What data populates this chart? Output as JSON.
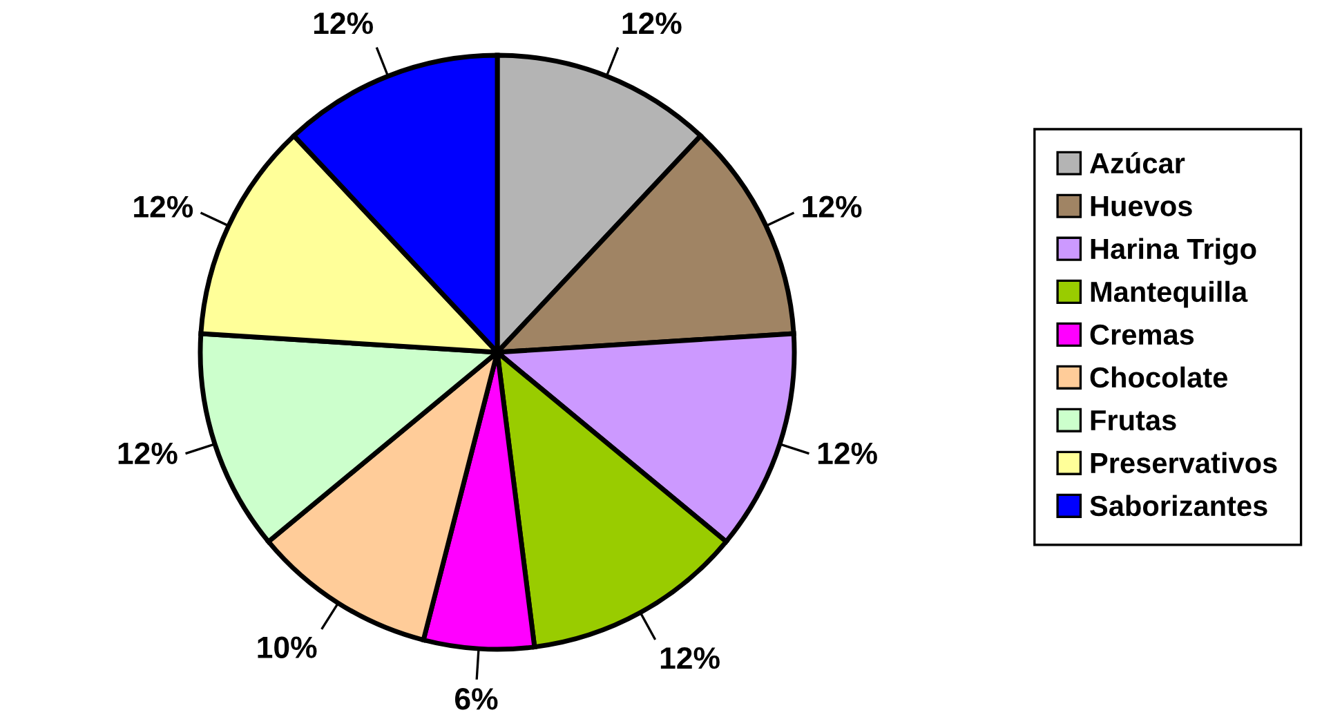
{
  "chart_data": {
    "type": "pie",
    "categories": [
      "Azúcar",
      "Huevos",
      "Harina Trigo",
      "Mantequilla",
      "Cremas",
      "Chocolate",
      "Frutas",
      "Preservativos",
      "Saborizantes"
    ],
    "values": [
      12,
      12,
      12,
      12,
      6,
      10,
      12,
      12,
      12
    ],
    "value_labels": [
      "12%",
      "12%",
      "12%",
      "12%",
      "6%",
      "10%",
      "12%",
      "12%",
      "12%"
    ],
    "colors": [
      "#b4b4b4",
      "#a08464",
      "#cc99ff",
      "#99cc00",
      "#ff00ff",
      "#ffcc99",
      "#ccffcc",
      "#ffff99",
      "#0000ff"
    ],
    "legend": "right"
  }
}
